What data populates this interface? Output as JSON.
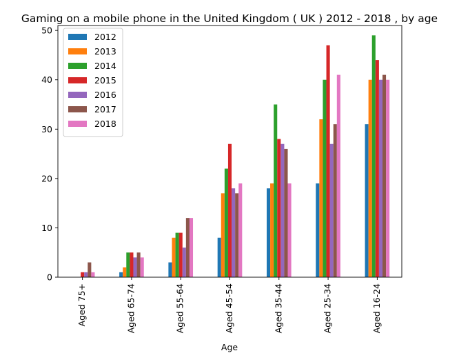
{
  "chart_data": {
    "type": "bar",
    "title": "Gaming on a mobile phone in the United Kingdom ( UK ) 2012 - 2018 , by age",
    "xlabel": "Age",
    "ylabel": "",
    "ylim": [
      0,
      51
    ],
    "yticks": [
      0,
      10,
      20,
      30,
      40,
      50
    ],
    "categories": [
      "Aged 75+",
      "Aged 65-74",
      "Aged 55-64",
      "Aged 45-54",
      "Aged 35-44",
      "Aged 25-34",
      "Aged 16-24"
    ],
    "legend_position": "top-left",
    "grid": false,
    "series": [
      {
        "name": "2012",
        "color": "#1f77b4",
        "values": [
          0,
          1,
          3,
          8,
          18,
          19,
          31
        ]
      },
      {
        "name": "2013",
        "color": "#ff7f0e",
        "values": [
          0,
          2,
          8,
          17,
          19,
          32,
          40
        ]
      },
      {
        "name": "2014",
        "color": "#2ca02c",
        "values": [
          0,
          5,
          9,
          22,
          35,
          40,
          49
        ]
      },
      {
        "name": "2015",
        "color": "#d62728",
        "values": [
          1,
          5,
          9,
          27,
          28,
          47,
          44
        ]
      },
      {
        "name": "2016",
        "color": "#9467bd",
        "values": [
          1,
          4,
          6,
          18,
          27,
          27,
          40
        ]
      },
      {
        "name": "2017",
        "color": "#8c564b",
        "values": [
          3,
          5,
          12,
          17,
          26,
          31,
          41
        ]
      },
      {
        "name": "2018",
        "color": "#e377c2",
        "values": [
          1,
          4,
          12,
          19,
          19,
          41,
          40
        ]
      }
    ]
  }
}
